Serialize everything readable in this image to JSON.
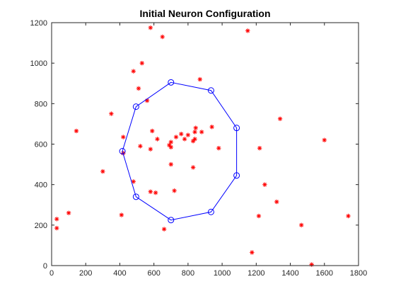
{
  "chart_data": {
    "type": "scatter",
    "title": "Initial Neuron Configuration",
    "xlabel": "",
    "ylabel": "",
    "xlim": [
      0,
      1800
    ],
    "ylim": [
      0,
      1200
    ],
    "xticks": [
      0,
      200,
      400,
      600,
      800,
      1000,
      1200,
      1400,
      1600,
      1800
    ],
    "yticks": [
      0,
      200,
      400,
      600,
      800,
      1000,
      1200
    ],
    "grid": false,
    "box": true,
    "series": [
      {
        "marker": "asterisk",
        "color": "#ff0000",
        "points": [
          [
            580,
            1175
          ],
          [
            650,
            1130
          ],
          [
            1150,
            1160
          ],
          [
            530,
            1000
          ],
          [
            480,
            960
          ],
          [
            870,
            920
          ],
          [
            510,
            875
          ],
          [
            560,
            815
          ],
          [
            350,
            750
          ],
          [
            1340,
            725
          ],
          [
            145,
            665
          ],
          [
            1600,
            620
          ],
          [
            420,
            635
          ],
          [
            590,
            665
          ],
          [
            620,
            625
          ],
          [
            700,
            610
          ],
          [
            730,
            635
          ],
          [
            760,
            650
          ],
          [
            780,
            625
          ],
          [
            800,
            645
          ],
          [
            840,
            660
          ],
          [
            845,
            680
          ],
          [
            880,
            660
          ],
          [
            940,
            685
          ],
          [
            830,
            615
          ],
          [
            840,
            625
          ],
          [
            690,
            595
          ],
          [
            700,
            585
          ],
          [
            520,
            590
          ],
          [
            580,
            575
          ],
          [
            980,
            580
          ],
          [
            1220,
            580
          ],
          [
            420,
            555
          ],
          [
            700,
            500
          ],
          [
            830,
            485
          ],
          [
            300,
            465
          ],
          [
            480,
            415
          ],
          [
            1250,
            400
          ],
          [
            720,
            370
          ],
          [
            580,
            365
          ],
          [
            610,
            360
          ],
          [
            1320,
            315
          ],
          [
            100,
            260
          ],
          [
            410,
            250
          ],
          [
            1215,
            245
          ],
          [
            1740,
            245
          ],
          [
            30,
            230
          ],
          [
            30,
            185
          ],
          [
            660,
            180
          ],
          [
            1465,
            200
          ],
          [
            1175,
            65
          ],
          [
            1525,
            5
          ]
        ]
      },
      {
        "marker": "circle",
        "color": "#0000ff",
        "connected": true,
        "closed": true,
        "points": [
          [
            700,
            905
          ],
          [
            935,
            865
          ],
          [
            1085,
            680
          ],
          [
            1085,
            445
          ],
          [
            935,
            265
          ],
          [
            700,
            225
          ],
          [
            495,
            340
          ],
          [
            415,
            565
          ],
          [
            495,
            785
          ]
        ]
      }
    ]
  }
}
